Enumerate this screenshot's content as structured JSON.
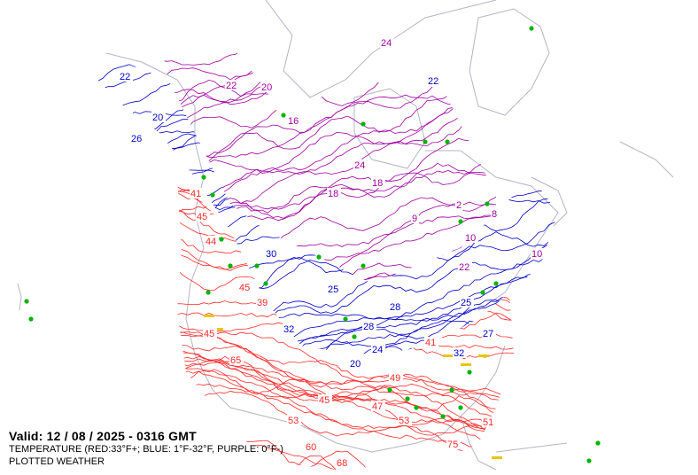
{
  "map": {
    "valid_label": "Valid: 12 / 08 / 2025  -  0316 GMT",
    "temperature_legend": "TEMPERATURE (RED:33°F+; BLUE: 1°F-32°F, PURPLE: 0°F-)",
    "plotted_weather_label": "PLOTTED WEATHER",
    "colors": {
      "warm": "#ff2a2a",
      "cold": "#0000c8",
      "very_cold": "#a000a0",
      "coastline": "#b4b4c8",
      "weather_symbols": "#00b400",
      "precip_symbols": "#e6c800"
    },
    "isotherm_labels": {
      "red": [
        "41",
        "45",
        "44",
        "39",
        "45",
        "53",
        "45",
        "60",
        "68",
        "75",
        "51",
        "53",
        "47",
        "65",
        "45",
        "49",
        "41"
      ],
      "blue": [
        "22",
        "20",
        "26",
        "30",
        "25",
        "32",
        "28",
        "24",
        "28",
        "20",
        "32",
        "25",
        "27",
        "22"
      ],
      "purple": [
        "22",
        "20",
        "16",
        "18",
        "24",
        "18",
        "10",
        "9",
        "8",
        "2",
        "10",
        "22",
        "24"
      ]
    }
  }
}
